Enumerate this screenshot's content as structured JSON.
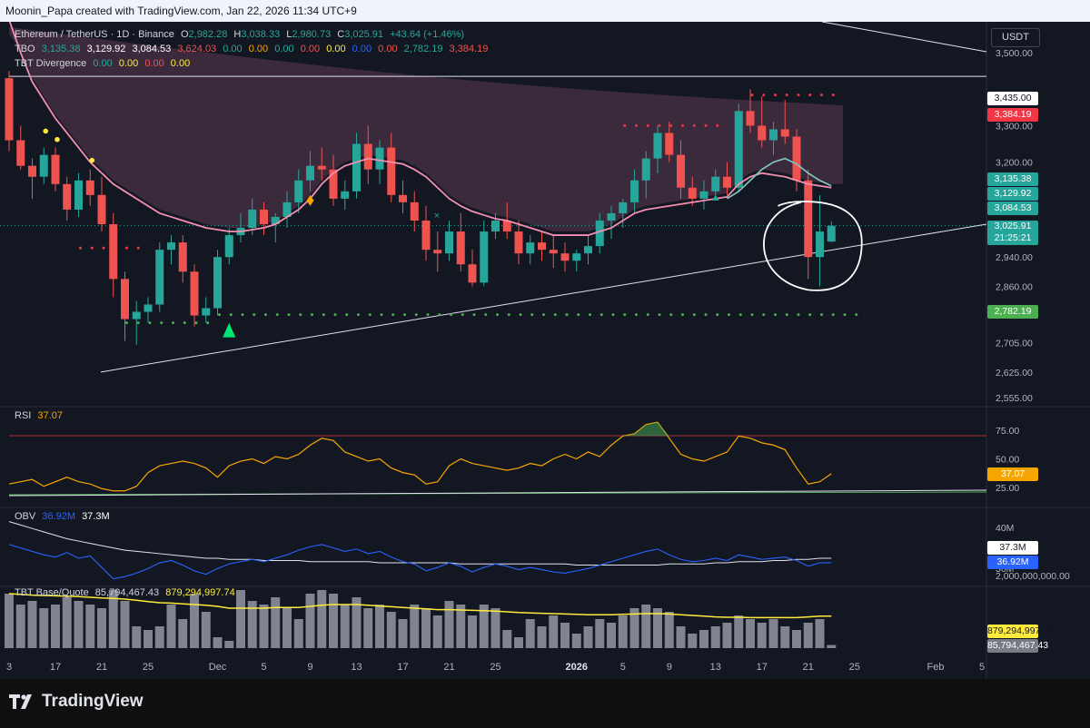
{
  "header": {
    "caption": "Moonin_Papa created with TradingView.com, Jan 22, 2026 11:34 UTC+9"
  },
  "legend": {
    "symbol": "Ethereum / TetherUS · 1D · Binance",
    "ohlc": {
      "o_label": "O",
      "o": "2,982.28",
      "h_label": "H",
      "h": "3,038.33",
      "l_label": "L",
      "l": "2,980.73",
      "c_label": "C",
      "c": "3,025.91",
      "change": "+43.64 (+1.46%)"
    },
    "tbo": {
      "name": "TBO",
      "values": [
        "3,135.38",
        "3,129.92",
        "3,084.53",
        "3,624.03",
        "0.00",
        "0.00",
        "0.00",
        "0.00",
        "0.00",
        "0.00",
        "0.00",
        "2,782.19",
        "3,384.19"
      ]
    },
    "tbt_div": {
      "name": "TBT Divergence",
      "values": [
        "0.00",
        "0.00",
        "0.00",
        "0.00"
      ]
    },
    "rsi": {
      "name": "RSI",
      "value": "37.07"
    },
    "obv": {
      "name": "OBV",
      "v1": "36.92M",
      "v2": "37.3M"
    },
    "tbt_bq": {
      "name": "TBT Base/Quote",
      "v1": "85,794,467.43",
      "v2": "879,294,997.74"
    }
  },
  "currency_button": "USDT",
  "brand": "TradingView",
  "chart_data": {
    "type": "candlestick",
    "ylim": [
      2555,
      3590
    ],
    "price_ticks": [
      "3,500.00",
      "3,300.00",
      "3,200.00",
      "3,020.00",
      "2,940.00",
      "2,860.00",
      "2,705.00",
      "2,625.00",
      "2,555.00"
    ],
    "price_tick_values": [
      3500,
      3300,
      3200,
      3020,
      2940,
      2860,
      2705,
      2625,
      2555
    ],
    "x_ticks": [
      {
        "label": "3",
        "i": 0
      },
      {
        "label": "17",
        "i": 4
      },
      {
        "label": "21",
        "i": 8
      },
      {
        "label": "25",
        "i": 12
      },
      {
        "label": "Dec",
        "i": 18
      },
      {
        "label": "5",
        "i": 22
      },
      {
        "label": "9",
        "i": 26
      },
      {
        "label": "13",
        "i": 30
      },
      {
        "label": "17",
        "i": 34
      },
      {
        "label": "21",
        "i": 38
      },
      {
        "label": "25",
        "i": 42
      },
      {
        "label": "2026",
        "i": 49
      },
      {
        "label": "5",
        "i": 53
      },
      {
        "label": "9",
        "i": 57
      },
      {
        "label": "13",
        "i": 61
      },
      {
        "label": "17",
        "i": 65
      },
      {
        "label": "21",
        "i": 69
      },
      {
        "label": "25",
        "i": 73
      },
      {
        "label": "Feb",
        "i": 80
      },
      {
        "label": "5",
        "i": 84
      }
    ],
    "candles": [
      [
        3430,
        3450,
        3230,
        3260
      ],
      [
        3260,
        3300,
        3180,
        3190
      ],
      [
        3190,
        3210,
        3100,
        3160
      ],
      [
        3160,
        3240,
        3140,
        3220
      ],
      [
        3220,
        3240,
        3120,
        3140
      ],
      [
        3140,
        3160,
        3040,
        3070
      ],
      [
        3070,
        3170,
        3050,
        3150
      ],
      [
        3150,
        3180,
        3080,
        3110
      ],
      [
        3110,
        3160,
        3010,
        3030
      ],
      [
        3030,
        3060,
        2830,
        2880
      ],
      [
        2880,
        2900,
        2710,
        2770
      ],
      [
        2770,
        2820,
        2700,
        2790
      ],
      [
        2790,
        2830,
        2760,
        2810
      ],
      [
        2810,
        2980,
        2790,
        2960
      ],
      [
        2960,
        3000,
        2920,
        2980
      ],
      [
        2980,
        3000,
        2870,
        2900
      ],
      [
        2900,
        2920,
        2750,
        2780
      ],
      [
        2780,
        2830,
        2760,
        2800
      ],
      [
        2800,
        2960,
        2780,
        2940
      ],
      [
        2940,
        3020,
        2920,
        3000
      ],
      [
        3000,
        3060,
        2980,
        3020
      ],
      [
        3020,
        3100,
        3000,
        3070
      ],
      [
        3070,
        3090,
        3000,
        3030
      ],
      [
        3030,
        3060,
        2980,
        3050
      ],
      [
        3050,
        3120,
        3020,
        3090
      ],
      [
        3090,
        3180,
        3060,
        3150
      ],
      [
        3150,
        3230,
        3120,
        3190
      ],
      [
        3190,
        3240,
        3150,
        3180
      ],
      [
        3180,
        3220,
        3080,
        3100
      ],
      [
        3100,
        3150,
        3070,
        3120
      ],
      [
        3120,
        3280,
        3100,
        3250
      ],
      [
        3250,
        3300,
        3140,
        3180
      ],
      [
        3180,
        3260,
        3140,
        3240
      ],
      [
        3240,
        3280,
        3090,
        3110
      ],
      [
        3110,
        3150,
        3060,
        3090
      ],
      [
        3090,
        3120,
        3010,
        3040
      ],
      [
        3040,
        3080,
        2930,
        2960
      ],
      [
        2960,
        3010,
        2900,
        2950
      ],
      [
        2950,
        3040,
        2930,
        3010
      ],
      [
        3010,
        3060,
        2900,
        2920
      ],
      [
        2920,
        2960,
        2860,
        2870
      ],
      [
        2870,
        3040,
        2860,
        3010
      ],
      [
        3010,
        3060,
        2990,
        3040
      ],
      [
        3040,
        3090,
        2990,
        3010
      ],
      [
        3010,
        3040,
        2920,
        2950
      ],
      [
        2950,
        3000,
        2920,
        2980
      ],
      [
        2980,
        3010,
        2930,
        2960
      ],
      [
        2960,
        3000,
        2910,
        2950
      ],
      [
        2950,
        2980,
        2900,
        2930
      ],
      [
        2930,
        2960,
        2900,
        2950
      ],
      [
        2950,
        3000,
        2920,
        2970
      ],
      [
        2970,
        3060,
        2950,
        3040
      ],
      [
        3040,
        3080,
        2990,
        3060
      ],
      [
        3060,
        3100,
        3020,
        3090
      ],
      [
        3090,
        3180,
        3060,
        3150
      ],
      [
        3150,
        3230,
        3100,
        3210
      ],
      [
        3210,
        3300,
        3170,
        3280
      ],
      [
        3280,
        3310,
        3200,
        3220
      ],
      [
        3220,
        3260,
        3100,
        3130
      ],
      [
        3130,
        3160,
        3080,
        3100
      ],
      [
        3100,
        3150,
        3070,
        3120
      ],
      [
        3120,
        3180,
        3100,
        3160
      ],
      [
        3160,
        3200,
        3110,
        3130
      ],
      [
        3130,
        3360,
        3120,
        3340
      ],
      [
        3340,
        3400,
        3280,
        3300
      ],
      [
        3300,
        3380,
        3240,
        3260
      ],
      [
        3260,
        3310,
        3220,
        3290
      ],
      [
        3290,
        3370,
        3250,
        3270
      ],
      [
        3270,
        3290,
        3120,
        3150
      ],
      [
        3150,
        3180,
        2880,
        2940
      ],
      [
        2940,
        3110,
        2860,
        3010
      ],
      [
        2982.28,
        3038.33,
        2980.73,
        3025.91
      ]
    ],
    "overlays": {
      "pink_ma": [
        3590,
        3500,
        3420,
        3370,
        3320,
        3280,
        3240,
        3200,
        3170,
        3140,
        3120,
        3100,
        3080,
        3060,
        3050,
        3040,
        3030,
        3020,
        3015,
        3010,
        3010,
        3015,
        3020,
        3030,
        3050,
        3070,
        3100,
        3140,
        3170,
        3190,
        3200,
        3210,
        3205,
        3200,
        3195,
        3180,
        3160,
        3130,
        3100,
        3080,
        3065,
        3055,
        3045,
        3040,
        3030,
        3020,
        3010,
        3000,
        3000,
        3000,
        3000,
        3010,
        3020,
        3040,
        3060,
        3070,
        3075,
        3080,
        3085,
        3090,
        3095,
        3100,
        3105,
        3140,
        3160,
        3170,
        3165,
        3160,
        3150,
        3140,
        3135,
        3130
      ],
      "cyan_ma": [
        3100,
        3120,
        3150,
        3180,
        3200,
        3210,
        3195,
        3170,
        3150,
        3135
      ],
      "cyan_ma_start": 62,
      "resistance_3435": 3435,
      "tbo_red_dots": {
        "value": 3384.19,
        "from": 64,
        "to": 71
      },
      "tbo_red_dots2": {
        "value": 3300,
        "from": 53,
        "to": 61
      },
      "tbo_red_dots3": {
        "value": 2965,
        "from": 6,
        "to": 11
      },
      "tbo_green_dots": {
        "value": 2782.19,
        "from": 18,
        "to": 73
      },
      "tbo_green_dots2": {
        "value": 2760,
        "from": 10,
        "to": 17
      }
    },
    "rsi": {
      "value": 37.07,
      "ylim": [
        20,
        85
      ],
      "ticks": [
        "75.00",
        "50.00",
        "25.00"
      ],
      "tick_values": [
        75,
        50,
        25
      ],
      "series": [
        28,
        30,
        32,
        26,
        30,
        34,
        30,
        28,
        24,
        22,
        22,
        26,
        38,
        44,
        46,
        48,
        46,
        42,
        34,
        44,
        48,
        50,
        46,
        52,
        50,
        54,
        62,
        68,
        66,
        56,
        52,
        48,
        50,
        42,
        38,
        36,
        28,
        30,
        44,
        50,
        46,
        44,
        42,
        40,
        42,
        46,
        44,
        50,
        54,
        50,
        56,
        52,
        62,
        70,
        72,
        80,
        82,
        68,
        54,
        50,
        48,
        52,
        56,
        70,
        68,
        64,
        62,
        58,
        42,
        28,
        30,
        37
      ]
    },
    "obv": {
      "ticks": [
        "40M"
      ],
      "series1": [
        38.5,
        38.2,
        37.9,
        37.6,
        37.4,
        37.8,
        37.3,
        37.5,
        36.5,
        35.5,
        35.7,
        36.0,
        36.4,
        36.9,
        37.1,
        36.7,
        36.2,
        35.9,
        36.4,
        36.8,
        37.0,
        37.2,
        37.0,
        37.3,
        37.6,
        38.0,
        38.3,
        38.5,
        38.2,
        37.9,
        38.1,
        37.7,
        37.9,
        37.4,
        37.0,
        36.8,
        36.2,
        36.5,
        36.9,
        36.6,
        36.1,
        36.5,
        36.8,
        36.6,
        36.3,
        36.5,
        36.3,
        36.1,
        36.0,
        36.2,
        36.4,
        36.7,
        37.0,
        37.3,
        37.6,
        37.9,
        38.1,
        37.6,
        37.2,
        37.0,
        37.1,
        37.3,
        37.1,
        37.6,
        37.4,
        37.2,
        37.3,
        37.4,
        37.1,
        36.6,
        36.9,
        36.92
      ],
      "series2": [
        40.5,
        40.2,
        39.9,
        39.6,
        39.3,
        39.0,
        38.8,
        38.6,
        38.4,
        38.2,
        38.0,
        37.9,
        37.8,
        37.7,
        37.6,
        37.5,
        37.4,
        37.3,
        37.3,
        37.2,
        37.2,
        37.2,
        37.1,
        37.1,
        37.1,
        37.1,
        37.0,
        37.0,
        37.0,
        37.0,
        37.0,
        37.0,
        36.9,
        36.9,
        36.9,
        36.9,
        36.9,
        36.9,
        36.9,
        36.8,
        36.8,
        36.8,
        36.8,
        36.8,
        36.8,
        36.8,
        36.8,
        36.8,
        36.8,
        36.7,
        36.7,
        36.7,
        36.7,
        36.7,
        36.7,
        36.7,
        36.7,
        36.8,
        36.8,
        36.8,
        36.8,
        36.9,
        36.9,
        37.0,
        37.0,
        37.0,
        37.1,
        37.1,
        37.2,
        37.2,
        37.3,
        37.3
      ],
      "ylim": [
        35.0,
        41.5
      ]
    },
    "tbt_base_quote": {
      "ticks": [
        "2,000,000,000.00"
      ],
      "ylim": [
        0,
        2400000000
      ],
      "volumes": [
        1.5,
        1.2,
        1.3,
        1.1,
        1.2,
        1.4,
        1.3,
        1.2,
        1.1,
        1.6,
        1.3,
        0.6,
        0.5,
        0.6,
        1.2,
        0.8,
        1.5,
        1.0,
        0.3,
        0.2,
        1.6,
        1.3,
        1.2,
        1.4,
        1.1,
        0.8,
        1.5,
        1.6,
        1.5,
        1.2,
        1.4,
        1.1,
        1.2,
        1.0,
        0.8,
        1.2,
        1.1,
        0.9,
        1.3,
        1.2,
        0.9,
        1.2,
        1.1,
        0.5,
        0.3,
        0.8,
        0.6,
        0.9,
        0.7,
        0.4,
        0.6,
        0.8,
        0.7,
        0.9,
        1.1,
        1.2,
        1.1,
        1.0,
        0.6,
        0.4,
        0.5,
        0.6,
        0.7,
        0.9,
        0.8,
        0.7,
        0.8,
        0.6,
        0.5,
        0.7,
        0.8,
        0.086
      ],
      "avg": [
        1.5,
        1.48,
        1.46,
        1.45,
        1.44,
        1.43,
        1.42,
        1.4,
        1.38,
        1.37,
        1.35,
        1.32,
        1.28,
        1.25,
        1.24,
        1.22,
        1.2,
        1.18,
        1.15,
        1.1,
        1.1,
        1.1,
        1.1,
        1.12,
        1.12,
        1.12,
        1.15,
        1.18,
        1.2,
        1.2,
        1.2,
        1.18,
        1.16,
        1.14,
        1.12,
        1.1,
        1.08,
        1.06,
        1.06,
        1.05,
        1.04,
        1.03,
        1.02,
        1.0,
        0.98,
        0.97,
        0.96,
        0.95,
        0.94,
        0.93,
        0.92,
        0.92,
        0.92,
        0.93,
        0.94,
        0.95,
        0.95,
        0.94,
        0.92,
        0.9,
        0.88,
        0.86,
        0.85,
        0.85,
        0.84,
        0.84,
        0.84,
        0.84,
        0.84,
        0.86,
        0.88,
        0.88
      ]
    }
  }
}
